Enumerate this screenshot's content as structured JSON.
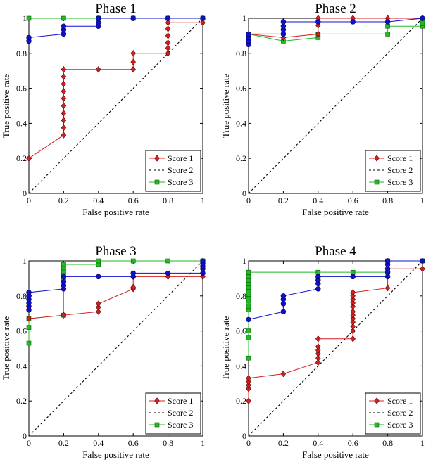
{
  "chart_data": [
    {
      "type": "line",
      "title": "Phase 1",
      "xlabel": "False positive rate",
      "ylabel": "True positive rate",
      "xlim": [
        0,
        1
      ],
      "ylim": [
        0,
        1
      ],
      "xticks": [
        "0",
        "0.2",
        "0.4",
        "0.6",
        "0.8",
        "1"
      ],
      "yticks": [
        "0",
        "0.2",
        "0.4",
        "0.6",
        "0.8",
        "1"
      ],
      "legend_position": "bottom-right",
      "series": [
        {
          "name": "Score 1",
          "color": "#d42020",
          "marker": "diamond",
          "points": [
            [
              0,
              0.2
            ],
            [
              0.2,
              0.333
            ],
            [
              0.2,
              0.375
            ],
            [
              0.2,
              0.417
            ],
            [
              0.2,
              0.458
            ],
            [
              0.2,
              0.5
            ],
            [
              0.2,
              0.542
            ],
            [
              0.2,
              0.583
            ],
            [
              0.2,
              0.625
            ],
            [
              0.2,
              0.667
            ],
            [
              0.2,
              0.708
            ],
            [
              0.4,
              0.708
            ],
            [
              0.6,
              0.708
            ],
            [
              0.6,
              0.75
            ],
            [
              0.6,
              0.8
            ],
            [
              0.8,
              0.8
            ],
            [
              0.8,
              0.83
            ],
            [
              0.8,
              0.86
            ],
            [
              0.8,
              0.9
            ],
            [
              0.8,
              0.94
            ],
            [
              0.8,
              0.975
            ],
            [
              1,
              0.975
            ]
          ]
        },
        {
          "name": "Score 2",
          "color": "#000000",
          "marker": "none",
          "dashed": true,
          "points": [
            [
              0,
              0
            ],
            [
              1,
              1
            ]
          ]
        },
        {
          "name": "Score 3",
          "color": "#22bb22",
          "marker": "square",
          "points": [
            [
              0,
              1
            ],
            [
              0.2,
              1
            ],
            [
              0.4,
              1
            ],
            [
              0.6,
              1
            ],
            [
              0.8,
              1
            ],
            [
              1,
              1
            ]
          ]
        },
        {
          "name": "",
          "color": "#1010cc",
          "marker": "circle",
          "legend": false,
          "points": [
            [
              0,
              0.87
            ],
            [
              0,
              0.89
            ],
            [
              0.2,
              0.91
            ],
            [
              0.2,
              0.935
            ],
            [
              0.2,
              0.955
            ],
            [
              0.4,
              0.955
            ],
            [
              0.4,
              0.975
            ],
            [
              0.4,
              1
            ],
            [
              0.6,
              1
            ],
            [
              0.8,
              1
            ],
            [
              1,
              1
            ]
          ]
        }
      ]
    },
    {
      "type": "line",
      "title": "Phase 2",
      "xlabel": "False positive rate",
      "ylabel": "True positive rate",
      "xlim": [
        0,
        1
      ],
      "ylim": [
        0,
        1
      ],
      "xticks": [
        "0",
        "0.2",
        "0.4",
        "0.6",
        "0.8",
        "1"
      ],
      "yticks": [
        "0",
        "0.2",
        "0.4",
        "0.6",
        "0.8",
        "1"
      ],
      "legend_position": "bottom-right",
      "series": [
        {
          "name": "Score 1",
          "color": "#d42020",
          "marker": "diamond",
          "points": [
            [
              0,
              0.91
            ],
            [
              0.2,
              0.89
            ],
            [
              0.4,
              0.91
            ],
            [
              0.4,
              0.96
            ],
            [
              0.4,
              1
            ],
            [
              0.6,
              1
            ],
            [
              0.8,
              1
            ],
            [
              1,
              1
            ]
          ]
        },
        {
          "name": "Score 2",
          "color": "#000000",
          "marker": "none",
          "dashed": true,
          "points": [
            [
              0,
              0
            ],
            [
              1,
              1
            ]
          ]
        },
        {
          "name": "Score 3",
          "color": "#22bb22",
          "marker": "square",
          "points": [
            [
              0,
              0.91
            ],
            [
              0.2,
              0.87
            ],
            [
              0.4,
              0.89
            ],
            [
              0.4,
              0.91
            ],
            [
              0.8,
              0.91
            ],
            [
              0.8,
              0.955
            ],
            [
              1,
              0.955
            ],
            [
              1,
              0.97
            ],
            [
              1,
              0.985
            ]
          ]
        },
        {
          "name": "",
          "color": "#1010cc",
          "marker": "circle",
          "legend": false,
          "points": [
            [
              0,
              0.85
            ],
            [
              0,
              0.87
            ],
            [
              0,
              0.89
            ],
            [
              0,
              0.91
            ],
            [
              0.2,
              0.91
            ],
            [
              0.2,
              0.935
            ],
            [
              0.2,
              0.955
            ],
            [
              0.2,
              0.98
            ],
            [
              0.4,
              0.98
            ],
            [
              0.6,
              0.98
            ],
            [
              0.8,
              0.98
            ],
            [
              1,
              1
            ]
          ]
        }
      ]
    },
    {
      "type": "line",
      "title": "Phase 3",
      "xlabel": "False positive rate",
      "ylabel": "True positive rate",
      "xlim": [
        0,
        1
      ],
      "ylim": [
        0,
        1
      ],
      "xticks": [
        "0",
        "0.2",
        "0.4",
        "0.6",
        "0.8",
        "1"
      ],
      "yticks": [
        "0",
        "0.2",
        "0.4",
        "0.6",
        "0.8",
        "1"
      ],
      "legend_position": "bottom-right",
      "series": [
        {
          "name": "Score 1",
          "color": "#d42020",
          "marker": "diamond",
          "points": [
            [
              0,
              0.67
            ],
            [
              0.2,
              0.69
            ],
            [
              0.4,
              0.71
            ],
            [
              0.4,
              0.735
            ],
            [
              0.4,
              0.755
            ],
            [
              0.6,
              0.84
            ],
            [
              0.6,
              0.85
            ],
            [
              0.6,
              0.91
            ],
            [
              0.8,
              0.91
            ],
            [
              1,
              0.91
            ]
          ]
        },
        {
          "name": "Score 2",
          "color": "#000000",
          "marker": "none",
          "dashed": true,
          "points": [
            [
              0,
              0
            ],
            [
              1,
              1
            ]
          ]
        },
        {
          "name": "Score 3",
          "color": "#22bb22",
          "marker": "square",
          "points": [
            [
              0,
              0.53
            ],
            [
              0,
              0.62
            ],
            [
              0,
              0.67
            ],
            [
              0.2,
              0.69
            ],
            [
              0.2,
              0.9
            ],
            [
              0.2,
              0.92
            ],
            [
              0.2,
              0.94
            ],
            [
              0.2,
              0.96
            ],
            [
              0.2,
              0.98
            ],
            [
              0.4,
              0.98
            ],
            [
              0.4,
              1
            ],
            [
              0.6,
              1
            ],
            [
              0.8,
              1
            ],
            [
              1,
              1
            ]
          ]
        },
        {
          "name": "",
          "color": "#1010cc",
          "marker": "circle",
          "legend": false,
          "points": [
            [
              0,
              0.72
            ],
            [
              0,
              0.74
            ],
            [
              0,
              0.76
            ],
            [
              0,
              0.78
            ],
            [
              0,
              0.8
            ],
            [
              0,
              0.82
            ],
            [
              0.2,
              0.84
            ],
            [
              0.2,
              0.86
            ],
            [
              0.2,
              0.88
            ],
            [
              0.2,
              0.91
            ],
            [
              0.4,
              0.91
            ],
            [
              0.6,
              0.91
            ],
            [
              0.6,
              0.93
            ],
            [
              0.8,
              0.93
            ],
            [
              1,
              0.93
            ],
            [
              1,
              0.955
            ],
            [
              1,
              0.97
            ],
            [
              1,
              0.985
            ],
            [
              1,
              1
            ]
          ]
        }
      ]
    },
    {
      "type": "line",
      "title": "Phase 4",
      "xlabel": "False positive rate",
      "ylabel": "True positive rate",
      "xlim": [
        0,
        1
      ],
      "ylim": [
        0,
        1
      ],
      "xticks": [
        "0",
        "0.2",
        "0.4",
        "0.6",
        "0.8",
        "1"
      ],
      "yticks": [
        "0",
        "0.2",
        "0.4",
        "0.6",
        "0.8",
        "1"
      ],
      "legend_position": "bottom-right",
      "series": [
        {
          "name": "Score 1",
          "color": "#d42020",
          "marker": "diamond",
          "points": [
            [
              0,
              0.2
            ],
            [
              0,
              0.27
            ],
            [
              0,
              0.29
            ],
            [
              0,
              0.31
            ],
            [
              0,
              0.33
            ],
            [
              0.2,
              0.355
            ],
            [
              0.4,
              0.42
            ],
            [
              0.4,
              0.445
            ],
            [
              0.4,
              0.47
            ],
            [
              0.4,
              0.49
            ],
            [
              0.4,
              0.51
            ],
            [
              0.4,
              0.555
            ],
            [
              0.6,
              0.555
            ],
            [
              0.6,
              0.6
            ],
            [
              0.6,
              0.625
            ],
            [
              0.6,
              0.65
            ],
            [
              0.6,
              0.67
            ],
            [
              0.6,
              0.69
            ],
            [
              0.6,
              0.71
            ],
            [
              0.6,
              0.74
            ],
            [
              0.6,
              0.76
            ],
            [
              0.6,
              0.78
            ],
            [
              0.6,
              0.8
            ],
            [
              0.6,
              0.82
            ],
            [
              0.8,
              0.845
            ],
            [
              0.8,
              0.955
            ],
            [
              1,
              0.955
            ]
          ]
        },
        {
          "name": "Score 2",
          "color": "#000000",
          "marker": "none",
          "dashed": true,
          "points": [
            [
              0,
              0
            ],
            [
              1,
              1
            ]
          ]
        },
        {
          "name": "Score 3",
          "color": "#22bb22",
          "marker": "square",
          "points": [
            [
              0,
              0.445
            ],
            [
              0,
              0.56
            ],
            [
              0,
              0.6
            ],
            [
              0,
              0.72
            ],
            [
              0,
              0.74
            ],
            [
              0,
              0.77
            ],
            [
              0,
              0.79
            ],
            [
              0,
              0.81
            ],
            [
              0,
              0.83
            ],
            [
              0,
              0.85
            ],
            [
              0,
              0.87
            ],
            [
              0,
              0.89
            ],
            [
              0,
              0.91
            ],
            [
              0,
              0.935
            ],
            [
              0.4,
              0.935
            ],
            [
              0.6,
              0.935
            ],
            [
              0.8,
              0.935
            ],
            [
              0.8,
              1
            ],
            [
              1,
              1
            ]
          ]
        },
        {
          "name": "",
          "color": "#1010cc",
          "marker": "circle",
          "legend": false,
          "points": [
            [
              0,
              0.665
            ],
            [
              0.2,
              0.71
            ],
            [
              0.2,
              0.755
            ],
            [
              0.2,
              0.78
            ],
            [
              0.2,
              0.8
            ],
            [
              0.4,
              0.84
            ],
            [
              0.4,
              0.87
            ],
            [
              0.4,
              0.89
            ],
            [
              0.4,
              0.91
            ],
            [
              0.6,
              0.91
            ],
            [
              0.8,
              0.91
            ],
            [
              0.8,
              0.935
            ],
            [
              0.8,
              0.955
            ],
            [
              0.8,
              0.98
            ],
            [
              0.8,
              1
            ],
            [
              1,
              1
            ]
          ]
        }
      ]
    }
  ]
}
